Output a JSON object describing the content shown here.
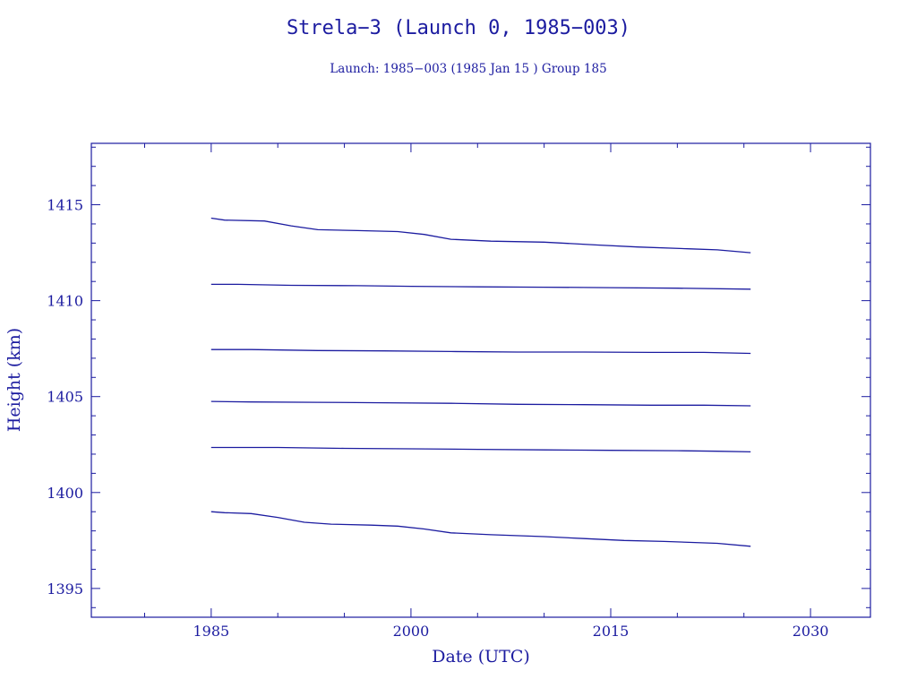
{
  "colors": {
    "ink": "#1c1ca0",
    "background": "#ffffff"
  },
  "chart_data": {
    "type": "line",
    "title": "Strela−3 (Launch 0, 1985−003)",
    "subtitle": "Launch: 1985−003  (1985 Jan 15 )  Group 185",
    "xlabel": "Date (UTC)",
    "ylabel": "Height (km)",
    "xlim": [
      1976,
      2034.5
    ],
    "ylim": [
      1393.5,
      1418.2
    ],
    "x_major_ticks": [
      1985,
      2000,
      2015,
      2030
    ],
    "x_tick_labels": [
      "1985",
      "2000",
      "2015",
      "2030"
    ],
    "y_major_ticks": [
      1395,
      1400,
      1405,
      1410,
      1415
    ],
    "y_tick_labels": [
      "1395",
      "1400",
      "1405",
      "1410",
      "1415"
    ],
    "grid": false,
    "legend": "none",
    "series": [
      {
        "x": [
          1985.0,
          1986,
          1989,
          1991,
          1993,
          1996,
          1999,
          2001,
          2003,
          2006,
          2010,
          2014,
          2017,
          2021,
          2023,
          2025.5
        ],
        "values": [
          1414.3,
          1414.2,
          1414.15,
          1413.9,
          1413.7,
          1413.65,
          1413.6,
          1413.45,
          1413.2,
          1413.1,
          1413.05,
          1412.9,
          1412.8,
          1412.7,
          1412.65,
          1412.5
        ]
      },
      {
        "x": [
          1985.0,
          1987,
          1991,
          1996,
          2000,
          2005,
          2010,
          2015,
          2020,
          2025.5
        ],
        "values": [
          1410.85,
          1410.85,
          1410.8,
          1410.78,
          1410.75,
          1410.72,
          1410.7,
          1410.68,
          1410.65,
          1410.6
        ]
      },
      {
        "x": [
          1985.0,
          1988,
          1993,
          1998,
          2003,
          2008,
          2013,
          2018,
          2022,
          2025.5
        ],
        "values": [
          1407.45,
          1407.45,
          1407.4,
          1407.38,
          1407.35,
          1407.32,
          1407.32,
          1407.3,
          1407.3,
          1407.25
        ]
      },
      {
        "x": [
          1985.0,
          1988,
          1993,
          1998,
          2003,
          2008,
          2013,
          2018,
          2022,
          2025.5
        ],
        "values": [
          1404.75,
          1404.72,
          1404.7,
          1404.68,
          1404.65,
          1404.6,
          1404.58,
          1404.55,
          1404.55,
          1404.52
        ]
      },
      {
        "x": [
          1985.0,
          1990,
          1995,
          2000,
          2005,
          2010,
          2015,
          2020,
          2023,
          2025.5
        ],
        "values": [
          1402.35,
          1402.35,
          1402.3,
          1402.28,
          1402.25,
          1402.22,
          1402.2,
          1402.18,
          1402.15,
          1402.12
        ]
      },
      {
        "x": [
          1985.0,
          1986,
          1988,
          1990,
          1992,
          1994,
          1997,
          1999,
          2001,
          2003,
          2006,
          2010,
          2013,
          2016,
          2019,
          2023,
          2025.5
        ],
        "values": [
          1399.0,
          1398.95,
          1398.9,
          1398.7,
          1398.45,
          1398.35,
          1398.3,
          1398.25,
          1398.1,
          1397.9,
          1397.8,
          1397.7,
          1397.6,
          1397.5,
          1397.45,
          1397.35,
          1397.2
        ]
      }
    ]
  }
}
